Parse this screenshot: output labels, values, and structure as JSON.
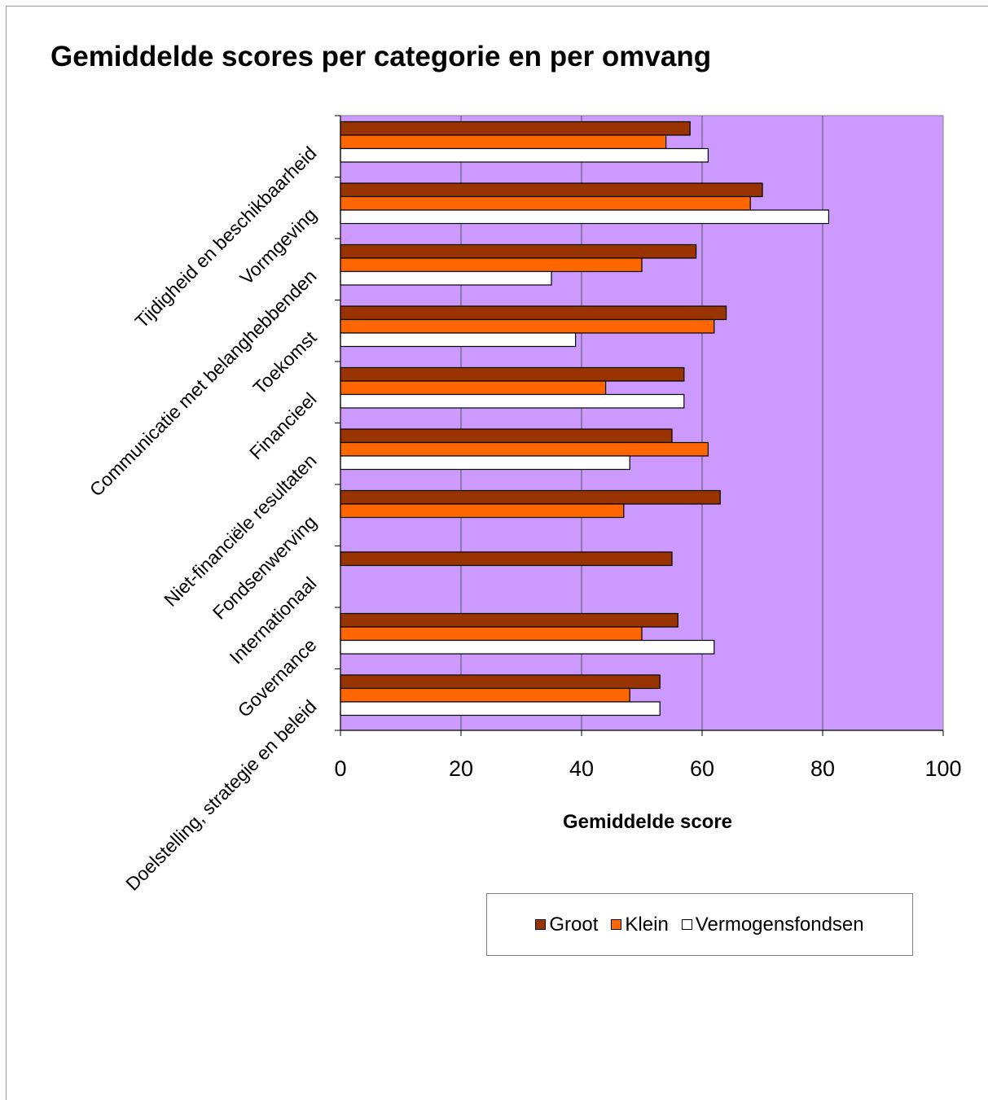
{
  "chart_data": {
    "type": "bar",
    "orientation": "horizontal",
    "title": "Gemiddelde scores per categorie en per omvang",
    "xlabel": "Gemiddelde score",
    "ylabel": "",
    "xlim": [
      0,
      100
    ],
    "ticks": [
      "0",
      "20",
      "40",
      "60",
      "80",
      "100"
    ],
    "grid": true,
    "legend_position": "bottom-right",
    "plot_background": "#cc99ff",
    "categories": [
      "Tijdigheid en beschikbaarheid",
      "Vormgeving",
      "Communicatie met belanghebbenden",
      "Toekomst",
      "Financieel",
      "Niet-financiële resultaten",
      "Fondsenwerving",
      "Internationaal",
      "Governance",
      "Doelstelling, strategie en beleid"
    ],
    "series": [
      {
        "name": "Groot",
        "color": "#993300",
        "values": [
          58,
          70,
          59,
          64,
          57,
          55,
          63,
          55,
          56,
          53
        ]
      },
      {
        "name": "Klein",
        "color": "#ff6600",
        "values": [
          54,
          68,
          50,
          62,
          44,
          61,
          47,
          null,
          50,
          48
        ]
      },
      {
        "name": "Vermogensfondsen",
        "color": "#ffffff",
        "values": [
          61,
          81,
          35,
          39,
          57,
          48,
          null,
          null,
          62,
          53
        ]
      }
    ]
  }
}
